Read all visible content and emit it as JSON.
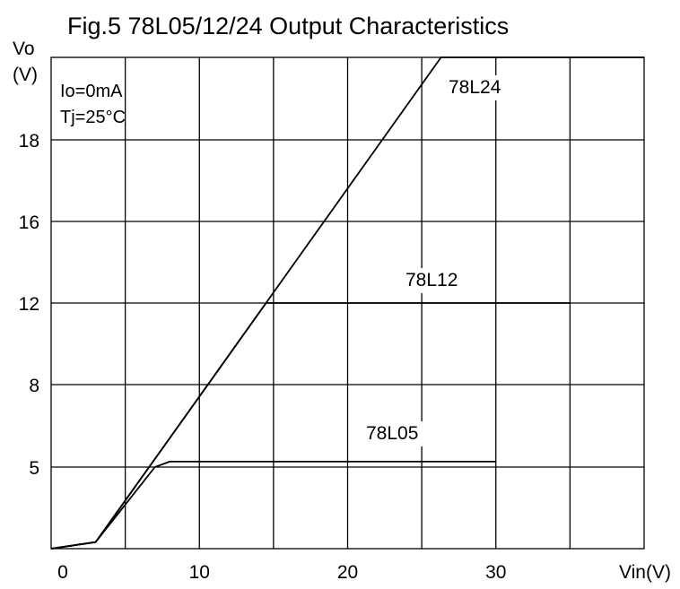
{
  "chart_data": {
    "type": "line",
    "title": "Fig.5 78L05/12/24 Output Characteristics",
    "ylabel": "Vo",
    "yunit": "(V)",
    "xlabel": "Vin(V)",
    "conditions": [
      "Io=0mA",
      "Tj=25°C"
    ],
    "x_ticks": [
      "0",
      "10",
      "20",
      "30"
    ],
    "y_ticks": [
      "5",
      "8",
      "12",
      "16",
      "18"
    ],
    "grid": true,
    "series": [
      {
        "name": "78L05",
        "points": [
          [
            0,
            0
          ],
          [
            3,
            0.4
          ],
          [
            7,
            5.0
          ],
          [
            8,
            5.2
          ],
          [
            30,
            5.2
          ]
        ]
      },
      {
        "name": "78L12",
        "points": [
          [
            0,
            0
          ],
          [
            3,
            0.4
          ],
          [
            14.5,
            12.0
          ],
          [
            15,
            12.0
          ],
          [
            35,
            12.0
          ]
        ]
      },
      {
        "name": "78L24",
        "points": [
          [
            0,
            0
          ],
          [
            3,
            0.4
          ],
          [
            26.3,
            24.0
          ],
          [
            40,
            24.0
          ]
        ]
      }
    ]
  }
}
